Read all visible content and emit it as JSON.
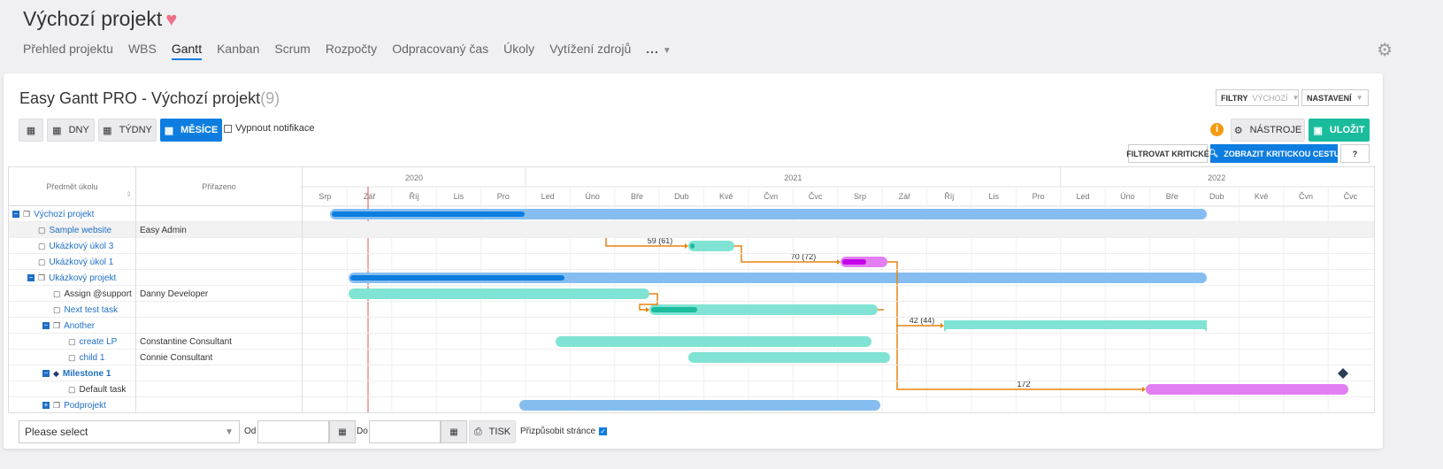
{
  "header": {
    "project_title": "Výchozí projekt",
    "nav": [
      "Přehled projektu",
      "WBS",
      "Gantt",
      "Kanban",
      "Scrum",
      "Rozpočty",
      "Odpracovaný čas",
      "Úkoly",
      "Vytížení zdrojů"
    ],
    "active_nav": "Gantt",
    "more": "..."
  },
  "gantt": {
    "title": "Easy Gantt PRO - Výchozí projekt",
    "count": "(9)"
  },
  "toolbar": {
    "days": "DNY",
    "weeks": "TÝDNY",
    "months": "MĚSÍCE",
    "notif": "Vypnout notifikace",
    "filters": "FILTRY",
    "filters_value": "VÝCHOZÍ",
    "settings": "NASTAVENÍ",
    "info": "i",
    "tools": "NÁSTROJE",
    "save": "ULOŽIT",
    "filter_critical": "FILTROVAT KRITICKÉ",
    "show_critical": "ZOBRAZIT KRITICKOU CESTU",
    "help": "?"
  },
  "columns": {
    "subject": "Předmět úkolu",
    "assignee": "Přiřazeno"
  },
  "timeline": {
    "years": [
      {
        "label": "2020",
        "start": 0,
        "span": 5
      },
      {
        "label": "2021",
        "start": 5,
        "span": 12
      },
      {
        "label": "2022",
        "start": 17,
        "span": 7
      }
    ],
    "months": [
      "Srp",
      "Zář",
      "Říj",
      "Lis",
      "Pro",
      "Led",
      "Úno",
      "Bře",
      "Dub",
      "Kvě",
      "Čvn",
      "Čvc",
      "Srp",
      "Zář",
      "Říj",
      "Lis",
      "Pro",
      "Led",
      "Úno",
      "Bře",
      "Dub",
      "Kvě",
      "Čvn",
      "Čvc"
    ]
  },
  "rows": [
    {
      "name": "Výchozí projekt",
      "assignee": "",
      "type": "project",
      "level": 0
    },
    {
      "name": "Sample website",
      "assignee": "Easy Admin",
      "type": "task",
      "level": 1
    },
    {
      "name": "Ukázkový úkol 3",
      "assignee": "",
      "type": "task",
      "level": 1
    },
    {
      "name": "Ukázkový úkol 1",
      "assignee": "",
      "type": "task",
      "level": 1
    },
    {
      "name": "Ukázkový projekt",
      "assignee": "",
      "type": "project",
      "level": 1
    },
    {
      "name": "Assign @support",
      "assignee": "Danny Developer",
      "type": "task",
      "level": 2
    },
    {
      "name": "Next test task",
      "assignee": "",
      "type": "task",
      "level": 2
    },
    {
      "name": "Another",
      "assignee": "",
      "type": "project",
      "level": 2
    },
    {
      "name": "create LP",
      "assignee": "Constantine Consultant",
      "type": "task",
      "level": 3
    },
    {
      "name": "child 1",
      "assignee": "Connie Consultant",
      "type": "task",
      "level": 3
    },
    {
      "name": "Milestone 1",
      "assignee": "",
      "type": "milestone",
      "level": 2
    },
    {
      "name": "Default task",
      "assignee": "",
      "type": "task",
      "level": 3
    },
    {
      "name": "Podprojekt",
      "assignee": "",
      "type": "project",
      "level": 2
    }
  ],
  "relations": [
    "59 (61)",
    "70 (72)",
    "42 (44)",
    "172"
  ],
  "colors": {
    "project_bar": "#85bdf0",
    "project_progress": "#0d7de0",
    "task_bar": "#80e3d3",
    "task_progress": "#1abc9c",
    "critical_bar": "#e27ff2",
    "critical_progress": "#c300e8",
    "relation": "#e6830f",
    "today_line": "#e05050"
  },
  "bottom": {
    "select": "Please select",
    "from": "Od",
    "to": "Do",
    "print": "TISK",
    "fit": "Přizpůsobit stránce"
  }
}
